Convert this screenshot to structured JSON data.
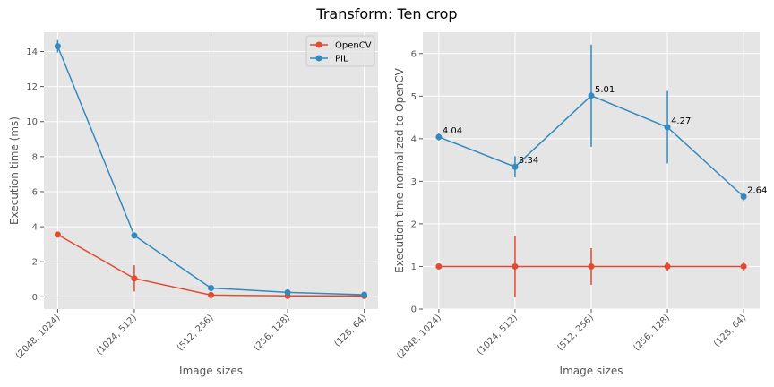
{
  "figure": {
    "title": "Transform: Ten crop"
  },
  "colors": {
    "opencv": "#E24A33",
    "pil": "#348ABD",
    "axes_bg": "#E5E5E5",
    "grid": "#FFFFFF",
    "text": "#555555"
  },
  "chart_data": [
    {
      "type": "line",
      "xlabel": "Image sizes",
      "ylabel": "Execution time (ms)",
      "categories": [
        "(2048, 1024)",
        "(1024, 512)",
        "(512, 256)",
        "(256, 128)",
        "(128, 64)"
      ],
      "ylim": [
        -0.7,
        15.1
      ],
      "yticks": [
        0,
        2,
        4,
        6,
        8,
        10,
        12,
        14
      ],
      "grid": true,
      "legend": "top-right",
      "series": [
        {
          "name": "OpenCV",
          "color": "#E24A33",
          "values": [
            3.55,
            1.05,
            0.1,
            0.05,
            0.05
          ],
          "err": [
            0.15,
            0.75,
            0.05,
            0.03,
            0.02
          ]
        },
        {
          "name": "PIL",
          "color": "#348ABD",
          "values": [
            14.3,
            3.5,
            0.5,
            0.25,
            0.12
          ],
          "err": [
            0.35,
            0.15,
            0.05,
            0.04,
            0.03
          ]
        }
      ]
    },
    {
      "type": "line",
      "xlabel": "Image sizes",
      "ylabel": "Execution time normalized to OpenCV",
      "categories": [
        "(2048, 1024)",
        "(1024, 512)",
        "(512, 256)",
        "(256, 128)",
        "(128, 64)"
      ],
      "ylim": [
        0,
        6.5
      ],
      "yticks": [
        0,
        1,
        2,
        3,
        4,
        5,
        6
      ],
      "grid": true,
      "series": [
        {
          "color": "#348ABD",
          "values": [
            4.04,
            3.34,
            5.01,
            4.27,
            2.64
          ],
          "err": [
            0.08,
            0.25,
            1.2,
            0.85,
            0.1
          ],
          "labels": [
            "4.04",
            "3.34",
            "5.01",
            "4.27",
            "2.64"
          ]
        },
        {
          "color": "#E24A33",
          "values": [
            1.0,
            1.0,
            1.0,
            1.0,
            1.0
          ],
          "err": [
            0.05,
            0.72,
            0.43,
            0.1,
            0.1
          ]
        }
      ]
    }
  ]
}
